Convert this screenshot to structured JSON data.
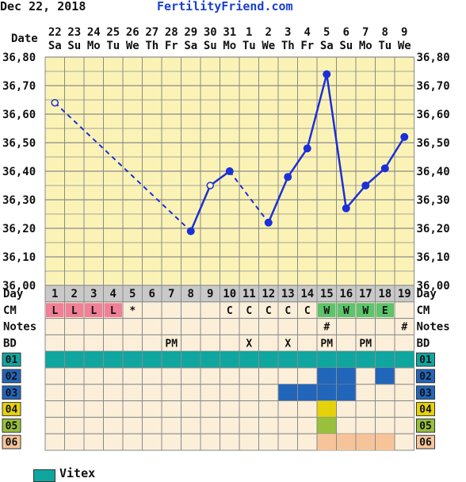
{
  "header": {
    "date": "Dec 22, 2018",
    "brand": "FertilityFriend.com"
  },
  "labels": {
    "date": "Date",
    "day": "Day",
    "cm": "CM",
    "notes": "Notes",
    "bd": "BD"
  },
  "colors": {
    "plot_bg": "#fbf3b6",
    "row_bg": "#fcefd9",
    "grid": "#8a8a8a",
    "line": "#1c2fd8",
    "cm_red": "#f08096",
    "cm_green": "#5cc46a",
    "r01": "#0fa6a0",
    "r02": "#2266bb",
    "r03": "#2266bb",
    "r04": "#e6d20a",
    "r05": "#98c03a",
    "r06": "#f7c49a"
  },
  "chart_data": {
    "type": "line",
    "dates": [
      "22",
      "23",
      "24",
      "25",
      "26",
      "27",
      "28",
      "29",
      "30",
      "31",
      "1",
      "2",
      "3",
      "4",
      "5",
      "6",
      "7",
      "8",
      "9"
    ],
    "weekdays": [
      "Sa",
      "Su",
      "Mo",
      "Tu",
      "We",
      "Th",
      "Fr",
      "Sa",
      "Su",
      "Mo",
      "Tu",
      "We",
      "Th",
      "Fr",
      "Sa",
      "Su",
      "Mo",
      "Tu",
      "We"
    ],
    "cycle_days": [
      "1",
      "2",
      "3",
      "4",
      "5",
      "6",
      "7",
      "8",
      "9",
      "10",
      "11",
      "12",
      "13",
      "14",
      "15",
      "16",
      "17",
      "18",
      "19"
    ],
    "y_ticks": [
      "36,80",
      "36,70",
      "36,60",
      "36,50",
      "36,40",
      "36,30",
      "36,20",
      "36,10",
      "36,00"
    ],
    "ylim": [
      36.0,
      36.8
    ],
    "temps": [
      {
        "day": 1,
        "value": 36.64,
        "open": true
      },
      {
        "day": 8,
        "value": 36.19
      },
      {
        "day": 9,
        "value": 36.35,
        "open": true
      },
      {
        "day": 10,
        "value": 36.4
      },
      {
        "day": 12,
        "value": 36.22
      },
      {
        "day": 13,
        "value": 36.38
      },
      {
        "day": 14,
        "value": 36.48
      },
      {
        "day": 15,
        "value": 36.74
      },
      {
        "day": 16,
        "value": 36.27
      },
      {
        "day": 17,
        "value": 36.35
      },
      {
        "day": 18,
        "value": 36.41
      },
      {
        "day": 19,
        "value": 36.52
      }
    ],
    "segments": [
      {
        "from": 1,
        "to": 8,
        "dashed": true
      },
      {
        "from": 8,
        "to": 9
      },
      {
        "from": 9,
        "to": 10
      },
      {
        "from": 10,
        "to": 12,
        "dashed": true
      },
      {
        "from": 12,
        "to": 13
      },
      {
        "from": 13,
        "to": 14
      },
      {
        "from": 14,
        "to": 15
      },
      {
        "from": 15,
        "to": 16
      },
      {
        "from": 16,
        "to": 17
      },
      {
        "from": 17,
        "to": 18
      },
      {
        "from": 18,
        "to": 19
      }
    ],
    "cm": [
      "L",
      "L",
      "L",
      "L",
      "*",
      "",
      "",
      "",
      "",
      "C",
      "C",
      "C",
      "C",
      "C",
      "W",
      "W",
      "W",
      "E",
      ""
    ],
    "cm_color": [
      "red",
      "red",
      "red",
      "red",
      "",
      "",
      "",
      "",
      "",
      "",
      "",
      "",
      "",
      "",
      "green",
      "green",
      "green",
      "green",
      ""
    ],
    "notes": [
      "",
      "",
      "",
      "",
      "",
      "",
      "",
      "",
      "",
      "",
      "",
      "",
      "",
      "",
      "#",
      "",
      "",
      "",
      "#"
    ],
    "bd": [
      "",
      "",
      "",
      "",
      "",
      "",
      "PM",
      "",
      "",
      "",
      "X",
      "",
      "X",
      "",
      "PM",
      "",
      "PM",
      "",
      ""
    ],
    "rows": [
      {
        "label": "01",
        "color_key": "r01",
        "days": [
          1,
          2,
          3,
          4,
          5,
          6,
          7,
          8,
          9,
          10,
          11,
          12,
          13,
          14,
          15,
          16,
          17,
          18,
          19
        ]
      },
      {
        "label": "02",
        "color_key": "r02",
        "days": [
          15,
          16,
          18
        ]
      },
      {
        "label": "03",
        "color_key": "r03",
        "days": [
          13,
          14,
          15,
          16
        ]
      },
      {
        "label": "04",
        "color_key": "r04",
        "days": [
          15
        ]
      },
      {
        "label": "05",
        "color_key": "r05",
        "days": [
          15
        ]
      },
      {
        "label": "06",
        "color_key": "r06",
        "days": [
          15,
          16,
          17,
          18
        ]
      }
    ]
  },
  "legend": {
    "code": "01",
    "text": "Vitex"
  }
}
